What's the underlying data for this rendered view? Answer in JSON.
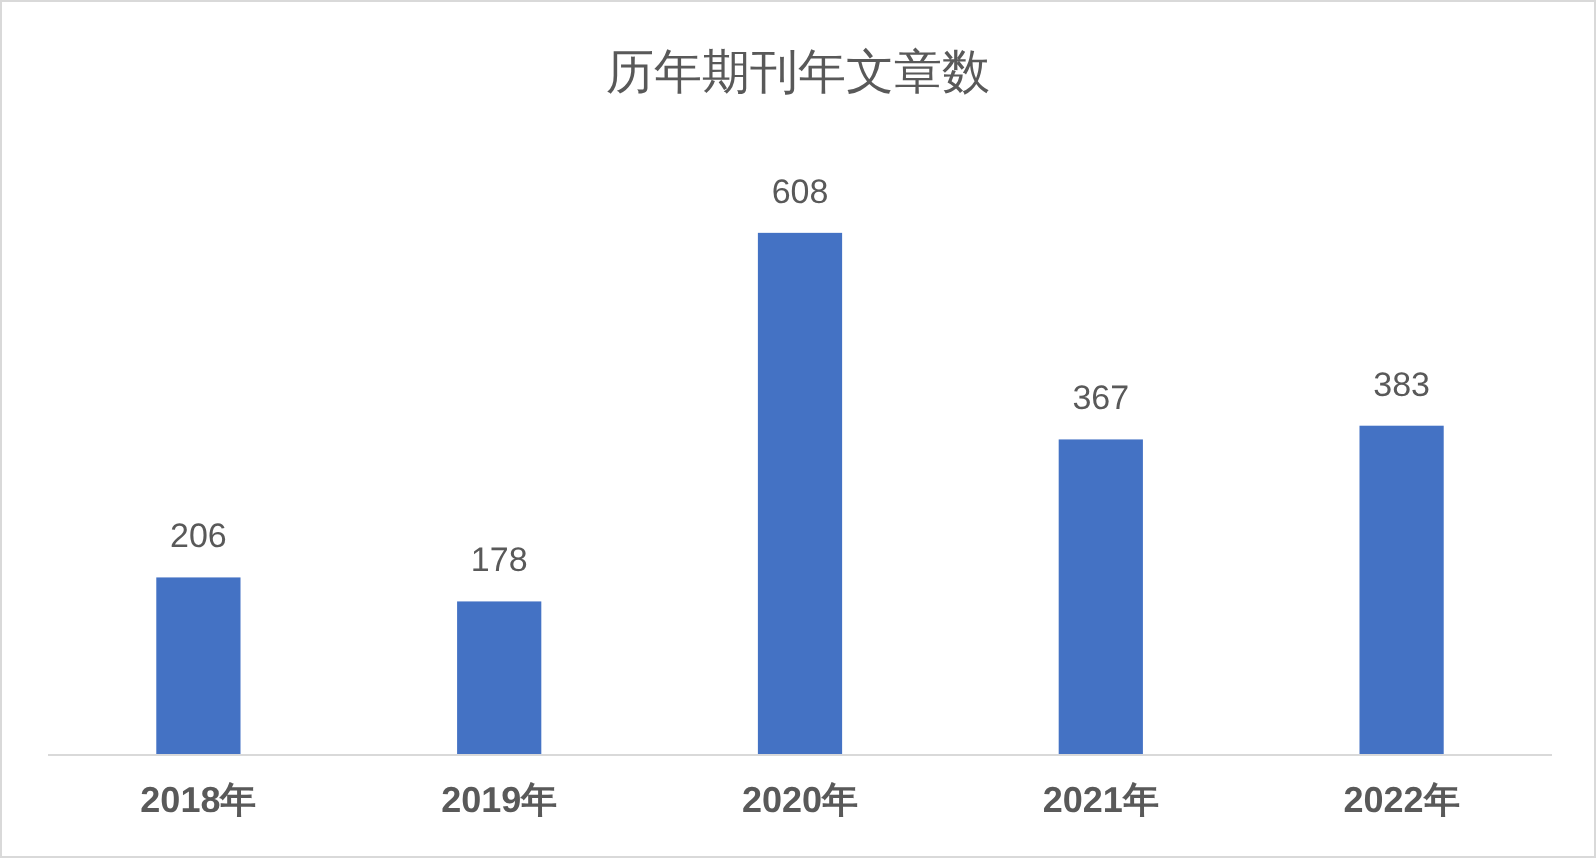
{
  "chart_data": {
    "type": "bar",
    "title": "历年期刊年文章数",
    "categories": [
      "2018年",
      "2019年",
      "2020年",
      "2021年",
      "2022年"
    ],
    "values": [
      206,
      178,
      608,
      367,
      383
    ],
    "color": "#4472c4",
    "data_labels": true
  }
}
